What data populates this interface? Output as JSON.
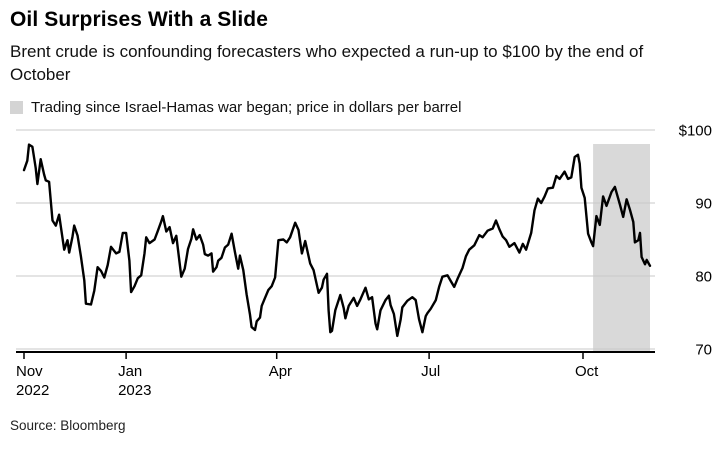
{
  "header": {
    "title": "Oil Surprises With a Slide",
    "subtitle": "Brent crude is confounding forecasters who expected a run-up to $100 by the end of October"
  },
  "legend": {
    "label": "Trading since Israel-Hamas war began; price in dollars per barrel",
    "swatch_color": "#d4d4d4"
  },
  "source": "Source: Bloomberg",
  "colors": {
    "line": "#000000",
    "grid": "#c9c9c9",
    "shading": "#d9d9d9",
    "axis": "#000000",
    "label": "#000000"
  },
  "chart_data": {
    "type": "line",
    "title": "Oil Surprises With a Slide",
    "ylabel": "price in dollars per barrel",
    "ylim": [
      68,
      101
    ],
    "grid": true,
    "yticks": [
      {
        "value": 100,
        "label": "$100"
      },
      {
        "value": 90,
        "label": "90"
      },
      {
        "value": 80,
        "label": "80"
      },
      {
        "value": 70,
        "label": "70"
      }
    ],
    "x_unit": "days since 2022-11-01",
    "xticks": [
      {
        "day": 0,
        "label": "Nov",
        "sub": "2022"
      },
      {
        "day": 61,
        "label": "Jan",
        "sub": "2023"
      },
      {
        "day": 151,
        "label": "Apr",
        "sub": ""
      },
      {
        "day": 242,
        "label": "Jul",
        "sub": ""
      },
      {
        "day": 334,
        "label": "Oct",
        "sub": ""
      }
    ],
    "shaded_region": {
      "label": "Trading since Israel-Hamas war began",
      "start_day": 340,
      "end_day": 374
    },
    "series": [
      {
        "name": "Brent crude, dollars per barrel",
        "points": [
          [
            0,
            94.5
          ],
          [
            2,
            95.8
          ],
          [
            3,
            98.0
          ],
          [
            5,
            97.7
          ],
          [
            7,
            94.8
          ],
          [
            8,
            92.6
          ],
          [
            10,
            96.0
          ],
          [
            12,
            93.9
          ],
          [
            13,
            93.1
          ],
          [
            15,
            92.9
          ],
          [
            17,
            87.6
          ],
          [
            19,
            86.9
          ],
          [
            21,
            88.4
          ],
          [
            24,
            83.6
          ],
          [
            26,
            84.9
          ],
          [
            27,
            83.2
          ],
          [
            29,
            85.4
          ],
          [
            30,
            86.9
          ],
          [
            32,
            85.5
          ],
          [
            34,
            82.7
          ],
          [
            36,
            79.4
          ],
          [
            37,
            76.2
          ],
          [
            40,
            76.1
          ],
          [
            42,
            78.0
          ],
          [
            44,
            81.2
          ],
          [
            46,
            80.7
          ],
          [
            48,
            79.8
          ],
          [
            50,
            81.5
          ],
          [
            52,
            84.0
          ],
          [
            55,
            83.1
          ],
          [
            57,
            83.3
          ],
          [
            59,
            85.9
          ],
          [
            61,
            85.9
          ],
          [
            63,
            82.1
          ],
          [
            64,
            77.8
          ],
          [
            66,
            78.6
          ],
          [
            68,
            79.7
          ],
          [
            70,
            80.1
          ],
          [
            72,
            83.1
          ],
          [
            73,
            85.3
          ],
          [
            75,
            84.5
          ],
          [
            78,
            85.0
          ],
          [
            80,
            86.2
          ],
          [
            82,
            87.5
          ],
          [
            83,
            88.2
          ],
          [
            85,
            86.1
          ],
          [
            87,
            86.7
          ],
          [
            89,
            84.5
          ],
          [
            91,
            85.5
          ],
          [
            94,
            79.9
          ],
          [
            96,
            81.0
          ],
          [
            98,
            83.7
          ],
          [
            100,
            85.1
          ],
          [
            101,
            86.4
          ],
          [
            103,
            85.0
          ],
          [
            105,
            85.6
          ],
          [
            107,
            84.3
          ],
          [
            108,
            83.0
          ],
          [
            110,
            82.8
          ],
          [
            112,
            83.1
          ],
          [
            113,
            80.6
          ],
          [
            115,
            81.2
          ],
          [
            116,
            82.1
          ],
          [
            118,
            82.5
          ],
          [
            120,
            83.9
          ],
          [
            122,
            84.3
          ],
          [
            124,
            85.8
          ],
          [
            126,
            83.3
          ],
          [
            128,
            81.0
          ],
          [
            129,
            82.8
          ],
          [
            131,
            80.8
          ],
          [
            133,
            77.5
          ],
          [
            135,
            74.7
          ],
          [
            136,
            73.0
          ],
          [
            138,
            72.6
          ],
          [
            139,
            73.8
          ],
          [
            141,
            74.3
          ],
          [
            142,
            75.9
          ],
          [
            144,
            77.0
          ],
          [
            146,
            78.1
          ],
          [
            148,
            78.6
          ],
          [
            150,
            79.8
          ],
          [
            152,
            84.9
          ],
          [
            155,
            85.0
          ],
          [
            157,
            84.6
          ],
          [
            159,
            85.3
          ],
          [
            162,
            87.3
          ],
          [
            164,
            86.3
          ],
          [
            166,
            83.1
          ],
          [
            168,
            84.8
          ],
          [
            171,
            81.7
          ],
          [
            173,
            80.8
          ],
          [
            176,
            77.7
          ],
          [
            178,
            78.4
          ],
          [
            179,
            79.5
          ],
          [
            181,
            80.3
          ],
          [
            182,
            75.3
          ],
          [
            183,
            72.3
          ],
          [
            184,
            72.5
          ],
          [
            186,
            75.3
          ],
          [
            189,
            77.4
          ],
          [
            191,
            75.6
          ],
          [
            192,
            74.2
          ],
          [
            194,
            75.9
          ],
          [
            197,
            77.0
          ],
          [
            199,
            75.9
          ],
          [
            201,
            76.8
          ],
          [
            204,
            78.4
          ],
          [
            206,
            76.8
          ],
          [
            208,
            77.1
          ],
          [
            210,
            73.5
          ],
          [
            211,
            72.7
          ],
          [
            213,
            75.3
          ],
          [
            216,
            76.7
          ],
          [
            218,
            77.3
          ],
          [
            219,
            76.0
          ],
          [
            221,
            74.8
          ],
          [
            223,
            71.8
          ],
          [
            225,
            74.0
          ],
          [
            226,
            75.7
          ],
          [
            229,
            76.6
          ],
          [
            232,
            77.1
          ],
          [
            234,
            76.7
          ],
          [
            236,
            74.1
          ],
          [
            238,
            72.3
          ],
          [
            240,
            74.5
          ],
          [
            241,
            74.9
          ],
          [
            243,
            75.5
          ],
          [
            246,
            76.7
          ],
          [
            248,
            78.5
          ],
          [
            250,
            79.9
          ],
          [
            253,
            80.1
          ],
          [
            255,
            79.3
          ],
          [
            257,
            78.5
          ],
          [
            259,
            79.6
          ],
          [
            262,
            81.1
          ],
          [
            264,
            82.7
          ],
          [
            266,
            83.6
          ],
          [
            269,
            84.2
          ],
          [
            272,
            85.6
          ],
          [
            274,
            85.3
          ],
          [
            277,
            86.2
          ],
          [
            280,
            86.5
          ],
          [
            282,
            87.6
          ],
          [
            284,
            86.4
          ],
          [
            286,
            85.4
          ],
          [
            288,
            84.9
          ],
          [
            290,
            84.0
          ],
          [
            293,
            84.5
          ],
          [
            296,
            83.2
          ],
          [
            298,
            84.4
          ],
          [
            300,
            83.6
          ],
          [
            303,
            85.9
          ],
          [
            305,
            89.0
          ],
          [
            307,
            90.6
          ],
          [
            309,
            90.0
          ],
          [
            311,
            90.9
          ],
          [
            313,
            92.0
          ],
          [
            316,
            92.1
          ],
          [
            318,
            93.7
          ],
          [
            320,
            93.3
          ],
          [
            323,
            94.3
          ],
          [
            325,
            93.3
          ],
          [
            327,
            93.5
          ],
          [
            329,
            96.3
          ],
          [
            331,
            96.6
          ],
          [
            332,
            95.4
          ],
          [
            333,
            92.1
          ],
          [
            335,
            90.7
          ],
          [
            337,
            85.8
          ],
          [
            339,
            84.6
          ],
          [
            340,
            84.1
          ],
          [
            342,
            88.2
          ],
          [
            344,
            87.0
          ],
          [
            346,
            90.9
          ],
          [
            348,
            89.6
          ],
          [
            351,
            91.5
          ],
          [
            353,
            92.2
          ],
          [
            356,
            89.8
          ],
          [
            358,
            88.1
          ],
          [
            360,
            90.5
          ],
          [
            362,
            89.1
          ],
          [
            364,
            87.4
          ],
          [
            365,
            84.6
          ],
          [
            367,
            84.9
          ],
          [
            368,
            85.9
          ],
          [
            369,
            82.6
          ],
          [
            371,
            81.6
          ],
          [
            372,
            82.2
          ],
          [
            374,
            81.4
          ]
        ]
      }
    ]
  }
}
